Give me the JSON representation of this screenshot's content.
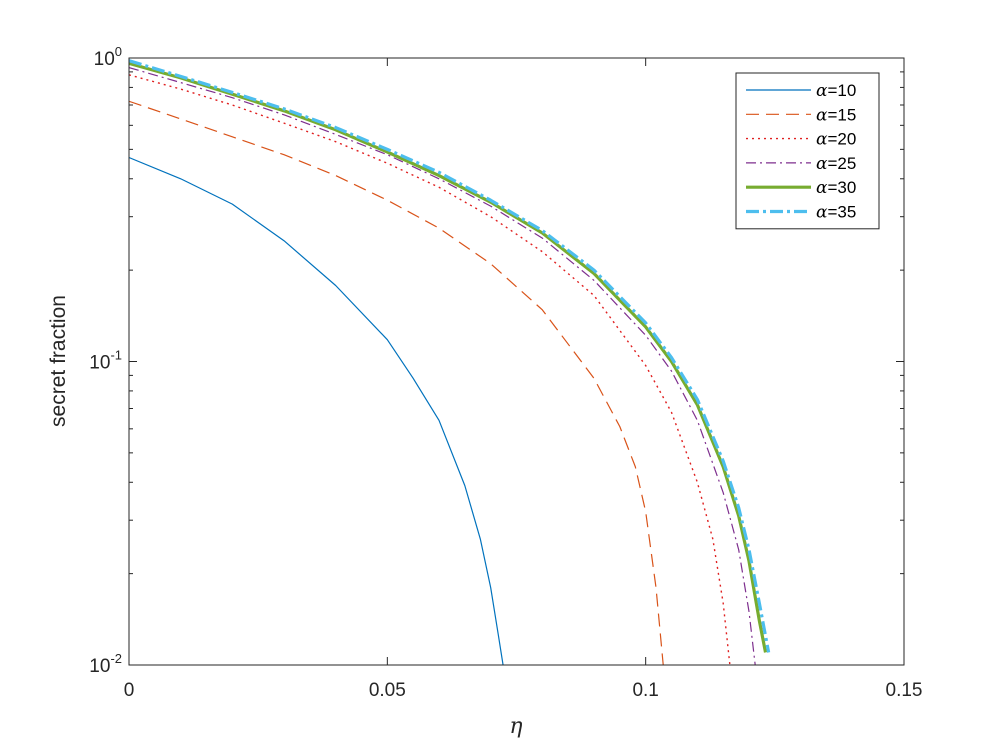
{
  "chart_data": {
    "type": "line",
    "xlabel": "η",
    "ylabel": "secret fraction",
    "xlim": [
      0,
      0.15
    ],
    "ylim": [
      0.01,
      1
    ],
    "yscale": "log",
    "xticks": [
      0,
      0.05,
      0.1,
      0.15
    ],
    "xtick_labels": [
      "0",
      "0.05",
      "0.1",
      "0.15"
    ],
    "yticks": [
      0.01,
      0.1,
      1
    ],
    "ytick_labels": [
      {
        "base": "10",
        "exp": "-2"
      },
      {
        "base": "10",
        "exp": "-1"
      },
      {
        "base": "10",
        "exp": "0"
      }
    ],
    "grid": false,
    "box": true,
    "legend_position": "top-right",
    "series": [
      {
        "name": "α=10",
        "color": "#0072BD",
        "dash": "",
        "width": 1.2,
        "x": [
          0,
          0.01,
          0.02,
          0.03,
          0.04,
          0.05,
          0.055,
          0.06,
          0.065,
          0.068,
          0.07,
          0.0715,
          0.0724
        ],
        "y": [
          0.47,
          0.4,
          0.33,
          0.25,
          0.178,
          0.118,
          0.088,
          0.064,
          0.039,
          0.026,
          0.018,
          0.0125,
          0.01
        ]
      },
      {
        "name": "α=15",
        "color": "#D95319",
        "dash": "13,7",
        "width": 1.2,
        "x": [
          0,
          0.01,
          0.02,
          0.03,
          0.04,
          0.05,
          0.06,
          0.07,
          0.08,
          0.09,
          0.095,
          0.098,
          0.1,
          0.102,
          0.1034
        ],
        "y": [
          0.72,
          0.63,
          0.55,
          0.48,
          0.41,
          0.34,
          0.275,
          0.21,
          0.148,
          0.088,
          0.061,
          0.045,
          0.032,
          0.018,
          0.01
        ]
      },
      {
        "name": "α=20",
        "color": "#E02020",
        "dash": "2,4",
        "width": 1.4,
        "x": [
          0,
          0.01,
          0.02,
          0.03,
          0.04,
          0.05,
          0.06,
          0.07,
          0.08,
          0.09,
          0.1,
          0.105,
          0.11,
          0.113,
          0.115,
          0.1163
        ],
        "y": [
          0.88,
          0.79,
          0.7,
          0.61,
          0.53,
          0.45,
          0.375,
          0.3,
          0.23,
          0.165,
          0.097,
          0.068,
          0.04,
          0.026,
          0.016,
          0.01
        ]
      },
      {
        "name": "α=25",
        "color": "#7E2F8E",
        "dash": "10,4,2,4",
        "width": 1.2,
        "x": [
          0,
          0.01,
          0.02,
          0.03,
          0.04,
          0.05,
          0.06,
          0.07,
          0.08,
          0.09,
          0.1,
          0.105,
          0.11,
          0.115,
          0.118,
          0.12,
          0.1212
        ],
        "y": [
          0.93,
          0.83,
          0.74,
          0.65,
          0.56,
          0.48,
          0.4,
          0.325,
          0.255,
          0.185,
          0.122,
          0.093,
          0.064,
          0.037,
          0.024,
          0.015,
          0.01
        ]
      },
      {
        "name": "α=30",
        "color": "#77AC30",
        "dash": "",
        "width": 3.2,
        "x": [
          0,
          0.01,
          0.02,
          0.03,
          0.04,
          0.05,
          0.06,
          0.07,
          0.08,
          0.09,
          0.1,
          0.105,
          0.11,
          0.115,
          0.118,
          0.12,
          0.122,
          0.1232
        ],
        "y": [
          0.96,
          0.86,
          0.76,
          0.67,
          0.58,
          0.49,
          0.41,
          0.335,
          0.265,
          0.195,
          0.13,
          0.1,
          0.072,
          0.045,
          0.031,
          0.022,
          0.014,
          0.011
        ]
      },
      {
        "name": "α=35",
        "color": "#4DBEEE",
        "dash": "13,4,3,4",
        "width": 3.2,
        "x": [
          0,
          0.01,
          0.02,
          0.03,
          0.04,
          0.05,
          0.06,
          0.07,
          0.08,
          0.09,
          0.1,
          0.105,
          0.11,
          0.115,
          0.118,
          0.12,
          0.122,
          0.1238
        ],
        "y": [
          0.98,
          0.87,
          0.77,
          0.68,
          0.59,
          0.5,
          0.42,
          0.34,
          0.27,
          0.2,
          0.134,
          0.103,
          0.075,
          0.047,
          0.033,
          0.024,
          0.016,
          0.011
        ]
      }
    ]
  }
}
